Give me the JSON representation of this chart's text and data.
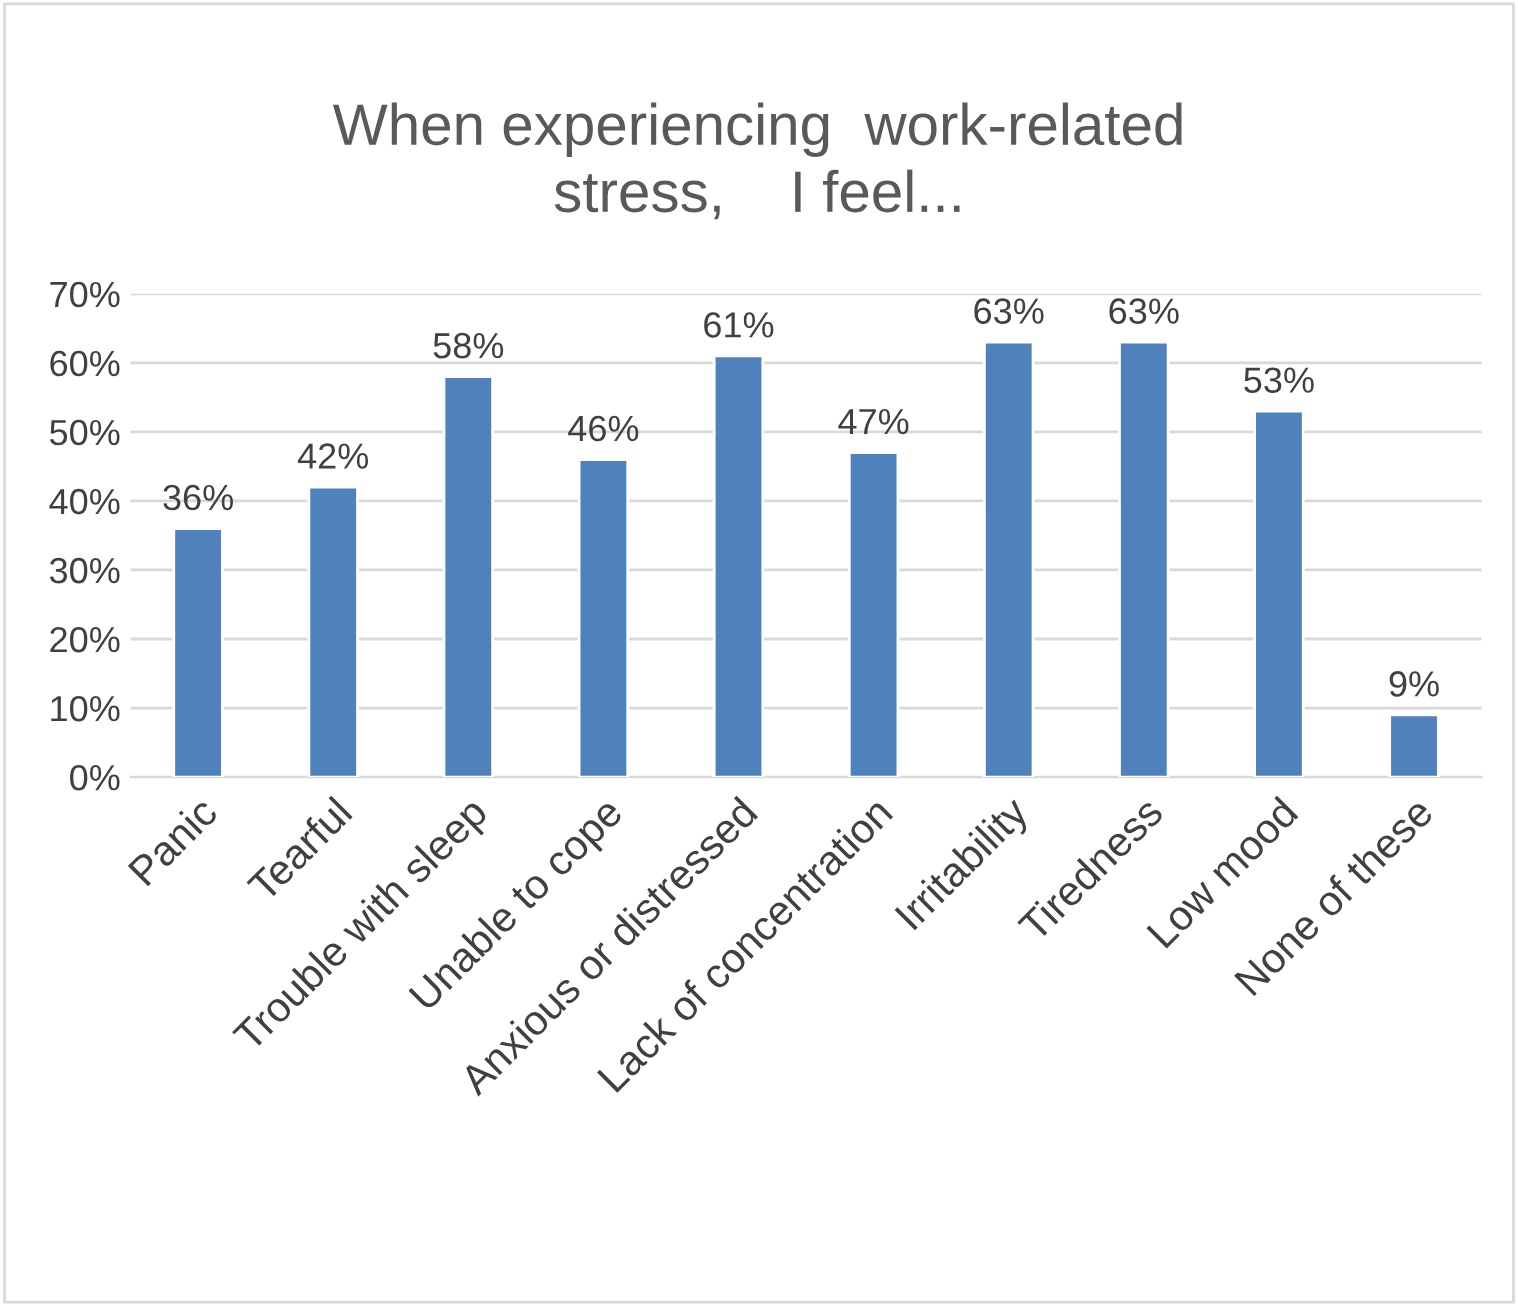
{
  "chart_data": {
    "type": "bar",
    "title": "When experiencing  work-related\nstress,    I feel...",
    "categories": [
      "Panic",
      "Tearful",
      "Trouble with sleep",
      "Unable to cope",
      "Anxious or distressed",
      "Lack of concentration",
      "Irritability",
      "Tiredness",
      "Low mood",
      "None of these"
    ],
    "values": [
      36,
      42,
      58,
      46,
      61,
      47,
      63,
      63,
      53,
      9
    ],
    "value_labels": [
      "36%",
      "42%",
      "58%",
      "46%",
      "61%",
      "47%",
      "63%",
      "63%",
      "53%",
      "9%"
    ],
    "color": "#4f81bd",
    "ylim": [
      0,
      70
    ],
    "yticks": [
      {
        "value": 0,
        "label": "0%"
      },
      {
        "value": 10,
        "label": "10%"
      },
      {
        "value": 20,
        "label": "20%"
      },
      {
        "value": 30,
        "label": "30%"
      },
      {
        "value": 40,
        "label": "40%"
      },
      {
        "value": 50,
        "label": "50%"
      },
      {
        "value": 60,
        "label": "60%"
      },
      {
        "value": 70,
        "label": "70%"
      }
    ],
    "grid": "y"
  }
}
